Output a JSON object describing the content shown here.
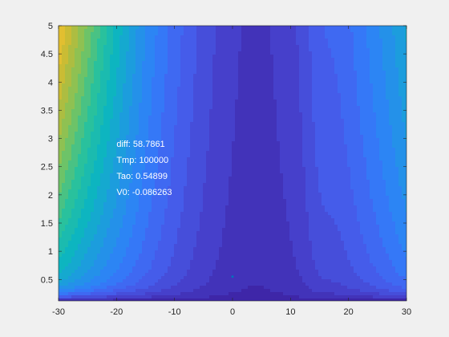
{
  "chart_data": {
    "type": "heatmap",
    "subtype": "filled-contour",
    "title": "",
    "xlabel": "",
    "ylabel": "",
    "xlim": [
      -30,
      30
    ],
    "ylim": [
      0.12,
      5
    ],
    "x_ticks": [
      -30,
      -20,
      -10,
      0,
      10,
      20,
      30
    ],
    "y_ticks": [
      0.5,
      1,
      1.5,
      2,
      2.5,
      3,
      3.5,
      4,
      4.5,
      5
    ],
    "grid": false,
    "colormap": "parula",
    "colormap_stops": [
      "#3e26a8",
      "#4743ce",
      "#4561f0",
      "#2f80f9",
      "#1e9be0",
      "#0db5c0",
      "#2cc29a",
      "#7cc35d",
      "#c0bb36",
      "#f5c12d",
      "#f9f21b"
    ],
    "valley": {
      "center_x": 4,
      "ridge_x": 15
    },
    "marker": {
      "x": 0,
      "y": 0.55,
      "color": "#0072bd"
    },
    "annotation": {
      "x": -20,
      "y": 2.85,
      "lines": [
        "diff: 58.7861",
        "Tmp: 100000",
        "Tao: 0.54899",
        "V0: -0.086263"
      ]
    }
  }
}
